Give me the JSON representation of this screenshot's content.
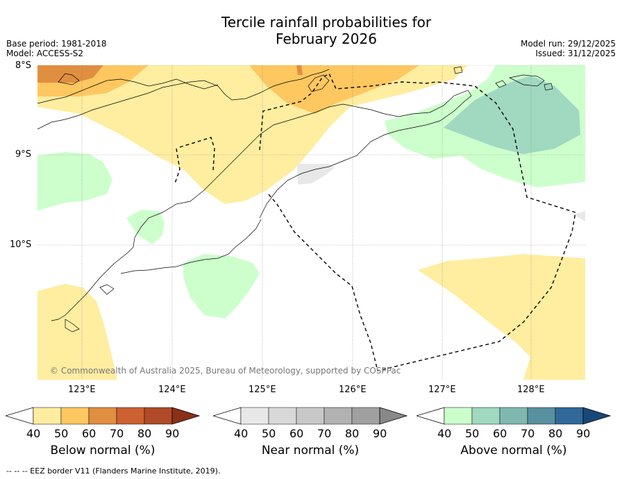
{
  "title_line1": "Tercile rainfall probabilities for",
  "title_line2": "February 2026",
  "meta_left": [
    "Base period: 1981-2018",
    "Model: ACCESS-S2"
  ],
  "meta_right": [
    "Model run: 29/12/2025",
    "Issued: 31/12/2025"
  ],
  "lat_labels": [
    "8°S",
    "9°S",
    "10°S"
  ],
  "lon_labels": [
    "123°E",
    "124°E",
    "125°E",
    "126°E",
    "127°E",
    "128°E"
  ],
  "copyright": "© Commonwealth of Australia 2025, Bureau of Meteorology, supported by COSPPac",
  "footer": "--  --  -- EEZ border V11 (Flanders Marine Institute, 2019).",
  "colorbars": [
    {
      "label": "Below normal (%)",
      "ticks": [
        "40",
        "50",
        "60",
        "70",
        "80",
        "90"
      ],
      "colors": [
        "#ffeda0",
        "#fec760",
        "#e08e40",
        "#cc6030",
        "#b04a28",
        "#8b3018"
      ]
    },
    {
      "label": "Near normal (%)",
      "ticks": [
        "40",
        "50",
        "60",
        "70",
        "80",
        "90"
      ],
      "colors": [
        "#e8e8e8",
        "#d8d8d8",
        "#c8c8c8",
        "#b2b2b2",
        "#a0a0a0",
        "#888888"
      ]
    },
    {
      "label": "Above normal (%)",
      "ticks": [
        "40",
        "50",
        "60",
        "70",
        "80",
        "90"
      ],
      "colors": [
        "#ccffcc",
        "#a0d8c0",
        "#80b8b0",
        "#5890a0",
        "#306898",
        "#184878"
      ]
    }
  ]
}
